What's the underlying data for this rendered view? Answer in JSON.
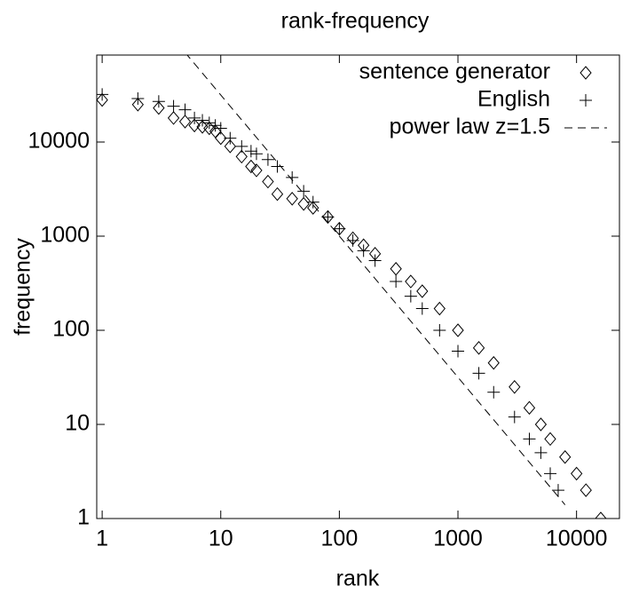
{
  "chart_data": {
    "type": "scatter",
    "title": "rank-frequency",
    "x_label": "rank",
    "y_label": "frequency",
    "x_log": true,
    "y_log": true,
    "xlim": [
      0.9,
      23000
    ],
    "ylim": [
      1,
      84000
    ],
    "xticks": [
      1,
      10,
      100,
      1000,
      10000
    ],
    "yticks": [
      1,
      10,
      100,
      1000,
      10000
    ],
    "legend": "top-right",
    "series": [
      {
        "name": "sentence generator",
        "color": "#000000",
        "marker": "diamond",
        "x": [
          1,
          2,
          3,
          4,
          5,
          6,
          7,
          8,
          9,
          10,
          12,
          15,
          18,
          20,
          25,
          30,
          40,
          50,
          60,
          80,
          100,
          130,
          160,
          200,
          300,
          400,
          500,
          700,
          1000,
          1500,
          2000,
          3000,
          4000,
          5000,
          6000,
          8000,
          10000,
          12000,
          16000
        ],
        "values": [
          28000,
          25000,
          23000,
          18000,
          16500,
          15000,
          14500,
          14000,
          13000,
          11000,
          9000,
          7000,
          5500,
          5000,
          3800,
          2800,
          2500,
          2200,
          2000,
          1600,
          1200,
          950,
          800,
          650,
          450,
          330,
          260,
          170,
          100,
          65,
          45,
          25,
          15,
          10,
          7,
          4.5,
          3,
          2,
          1
        ]
      },
      {
        "name": "English",
        "color": "#000000",
        "marker": "plus",
        "x": [
          1,
          2,
          3,
          4,
          5,
          6,
          7,
          8,
          9,
          10,
          12,
          15,
          18,
          20,
          25,
          30,
          40,
          50,
          60,
          80,
          100,
          130,
          160,
          200,
          300,
          400,
          500,
          700,
          1000,
          1500,
          2000,
          3000,
          4000,
          5000,
          6000,
          7000
        ],
        "values": [
          32000,
          29000,
          27000,
          24000,
          22000,
          18000,
          17000,
          16000,
          15000,
          14000,
          11000,
          9000,
          8000,
          7500,
          6500,
          5500,
          4200,
          3000,
          2300,
          1600,
          1200,
          900,
          700,
          550,
          330,
          230,
          170,
          100,
          60,
          35,
          22,
          12,
          7,
          5,
          3,
          2
        ]
      },
      {
        "name": "power law z=1.5",
        "color": "#000000",
        "marker": "dashed-line",
        "x": [
          5,
          8000
        ],
        "values": [
          89443,
          1.4
        ]
      }
    ]
  }
}
